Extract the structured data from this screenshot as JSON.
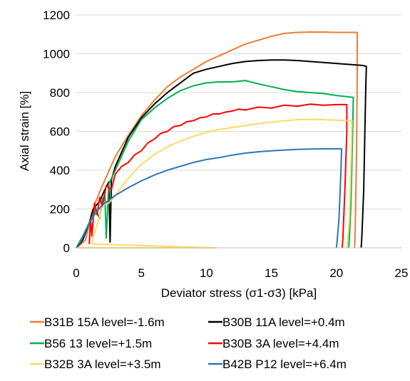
{
  "chart_data": {
    "type": "line",
    "title": "",
    "xlabel": "Deviator stress (σ1-σ3) [kPa]",
    "ylabel": "Axial strain [%]",
    "xlim": [
      0,
      25
    ],
    "ylim": [
      0,
      1200
    ],
    "xticks": [
      "0",
      "5",
      "10",
      "15",
      "20",
      "25"
    ],
    "yticks": [
      "0",
      "200",
      "400",
      "600",
      "800",
      "1000",
      "1200"
    ],
    "grid": "horizontal",
    "legend": "bottom",
    "series": [
      {
        "name": "B31B 15A level=-1.6m",
        "color": "#ED7D31",
        "points": [
          [
            0,
            0
          ],
          [
            0.3,
            15
          ],
          [
            0.7,
            40
          ],
          [
            1.0,
            120
          ],
          [
            1.2,
            180
          ],
          [
            1.5,
            240
          ],
          [
            2.0,
            320
          ],
          [
            3.0,
            470
          ],
          [
            4.0,
            580
          ],
          [
            5.0,
            680
          ],
          [
            6.0,
            760
          ],
          [
            7.0,
            830
          ],
          [
            8.0,
            880
          ],
          [
            9.0,
            920
          ],
          [
            10.0,
            960
          ],
          [
            11.0,
            990
          ],
          [
            12.0,
            1020
          ],
          [
            13.0,
            1050
          ],
          [
            14.0,
            1070
          ],
          [
            15.0,
            1090
          ],
          [
            16.0,
            1105
          ],
          [
            17.0,
            1110
          ],
          [
            18.0,
            1112
          ],
          [
            19.0,
            1112
          ],
          [
            20.0,
            1110
          ],
          [
            21.6,
            1110
          ],
          [
            21.6,
            900
          ],
          [
            21.55,
            500
          ],
          [
            21.45,
            100
          ],
          [
            21.4,
            0
          ]
        ]
      },
      {
        "name": "B30B 11A level=+0.4m",
        "color": "#000000",
        "points": [
          [
            0,
            0
          ],
          [
            0.5,
            40
          ],
          [
            1.0,
            130
          ],
          [
            1.3,
            200
          ],
          [
            1.8,
            240
          ],
          [
            2.2,
            300
          ],
          [
            2.5,
            340
          ],
          [
            2.6,
            30
          ],
          [
            2.7,
            350
          ],
          [
            3.0,
            420
          ],
          [
            4.0,
            570
          ],
          [
            5.0,
            670
          ],
          [
            6.0,
            740
          ],
          [
            7.0,
            800
          ],
          [
            8.0,
            850
          ],
          [
            9.0,
            900
          ],
          [
            10.0,
            920
          ],
          [
            11.0,
            935
          ],
          [
            12.0,
            950
          ],
          [
            13.0,
            960
          ],
          [
            14.0,
            965
          ],
          [
            15.0,
            968
          ],
          [
            16.0,
            968
          ],
          [
            17.0,
            965
          ],
          [
            18.0,
            960
          ],
          [
            19.0,
            955
          ],
          [
            20.0,
            950
          ],
          [
            21.0,
            945
          ],
          [
            22.0,
            940
          ],
          [
            22.3,
            935
          ],
          [
            22.25,
            800
          ],
          [
            22.1,
            300
          ],
          [
            21.95,
            50
          ],
          [
            21.9,
            0
          ]
        ]
      },
      {
        "name": "B56 13 level=+1.5m",
        "color": "#00B050",
        "points": [
          [
            0,
            0
          ],
          [
            0.5,
            60
          ],
          [
            1.0,
            130
          ],
          [
            1.5,
            200
          ],
          [
            1.8,
            150
          ],
          [
            2.0,
            250
          ],
          [
            2.2,
            270
          ],
          [
            2.3,
            50
          ],
          [
            2.5,
            330
          ],
          [
            3.0,
            400
          ],
          [
            4.0,
            550
          ],
          [
            5.0,
            660
          ],
          [
            6.0,
            720
          ],
          [
            7.0,
            770
          ],
          [
            8.0,
            810
          ],
          [
            9.0,
            835
          ],
          [
            10.0,
            850
          ],
          [
            11.0,
            855
          ],
          [
            12.0,
            855
          ],
          [
            13.0,
            862
          ],
          [
            14.0,
            845
          ],
          [
            15.0,
            830
          ],
          [
            16.0,
            815
          ],
          [
            17.0,
            805
          ],
          [
            18.0,
            800
          ],
          [
            19.0,
            795
          ],
          [
            20.0,
            785
          ],
          [
            21.3,
            775
          ],
          [
            21.25,
            600
          ],
          [
            21.1,
            200
          ],
          [
            21.0,
            50
          ],
          [
            20.95,
            0
          ]
        ]
      },
      {
        "name": "B30B 3A level=+4.4m",
        "color": "#FF0000",
        "points": [
          [
            1.0,
            20
          ],
          [
            1.1,
            150
          ],
          [
            1.2,
            60
          ],
          [
            1.4,
            230
          ],
          [
            1.6,
            170
          ],
          [
            1.8,
            260
          ],
          [
            2.0,
            210
          ],
          [
            2.3,
            320
          ],
          [
            2.7,
            300
          ],
          [
            3.0,
            380
          ],
          [
            3.5,
            420
          ],
          [
            4.0,
            440
          ],
          [
            4.5,
            480
          ],
          [
            5.0,
            500
          ],
          [
            5.5,
            540
          ],
          [
            6.0,
            560
          ],
          [
            6.5,
            590
          ],
          [
            7.0,
            600
          ],
          [
            7.5,
            625
          ],
          [
            8.0,
            630
          ],
          [
            8.5,
            650
          ],
          [
            9.0,
            655
          ],
          [
            9.5,
            670
          ],
          [
            10.0,
            675
          ],
          [
            10.5,
            690
          ],
          [
            11.0,
            690
          ],
          [
            11.5,
            700
          ],
          [
            12.0,
            705
          ],
          [
            12.5,
            715
          ],
          [
            13.0,
            710
          ],
          [
            14.0,
            725
          ],
          [
            15.0,
            720
          ],
          [
            16.0,
            735
          ],
          [
            17.0,
            730
          ],
          [
            18.0,
            740
          ],
          [
            19.0,
            735
          ],
          [
            20.0,
            738
          ],
          [
            20.8,
            738
          ],
          [
            20.8,
            600
          ],
          [
            20.65,
            300
          ],
          [
            20.5,
            50
          ],
          [
            20.45,
            0
          ]
        ]
      },
      {
        "name": "B32B 3A level=+3.5m",
        "color": "#FFD966",
        "points": [
          [
            0,
            0
          ],
          [
            10.8,
            0
          ],
          [
            1.2,
            20
          ],
          [
            1.5,
            100
          ],
          [
            1.8,
            160
          ],
          [
            2.0,
            220
          ],
          [
            2.5,
            230
          ],
          [
            3.0,
            270
          ],
          [
            4.0,
            360
          ],
          [
            5.0,
            430
          ],
          [
            6.0,
            480
          ],
          [
            7.0,
            520
          ],
          [
            8.0,
            550
          ],
          [
            9.0,
            575
          ],
          [
            10.0,
            595
          ],
          [
            11.0,
            610
          ],
          [
            12.0,
            620
          ],
          [
            13.0,
            630
          ],
          [
            14.0,
            640
          ],
          [
            15.0,
            648
          ],
          [
            16.0,
            655
          ],
          [
            17.0,
            660
          ],
          [
            18.0,
            662
          ],
          [
            19.0,
            660
          ],
          [
            20.0,
            658
          ],
          [
            21.2,
            655
          ],
          [
            21.15,
            500
          ],
          [
            21.0,
            150
          ],
          [
            20.85,
            20
          ],
          [
            20.8,
            0
          ]
        ]
      },
      {
        "name": "B42B P12 level=+6.4m",
        "color": "#2E75B6",
        "points": [
          [
            0,
            0
          ],
          [
            0.4,
            40
          ],
          [
            0.8,
            100
          ],
          [
            1.2,
            150
          ],
          [
            1.6,
            190
          ],
          [
            2.0,
            220
          ],
          [
            3.0,
            270
          ],
          [
            4.0,
            310
          ],
          [
            5.0,
            345
          ],
          [
            6.0,
            375
          ],
          [
            7.0,
            400
          ],
          [
            8.0,
            420
          ],
          [
            9.0,
            440
          ],
          [
            10.0,
            455
          ],
          [
            11.0,
            465
          ],
          [
            12.0,
            478
          ],
          [
            13.0,
            488
          ],
          [
            14.0,
            495
          ],
          [
            15.0,
            500
          ],
          [
            16.0,
            504
          ],
          [
            17.0,
            507
          ],
          [
            18.0,
            509
          ],
          [
            19.0,
            510
          ],
          [
            20.4,
            510
          ],
          [
            20.35,
            400
          ],
          [
            20.2,
            150
          ],
          [
            20.05,
            30
          ],
          [
            20.0,
            0
          ]
        ]
      }
    ]
  }
}
